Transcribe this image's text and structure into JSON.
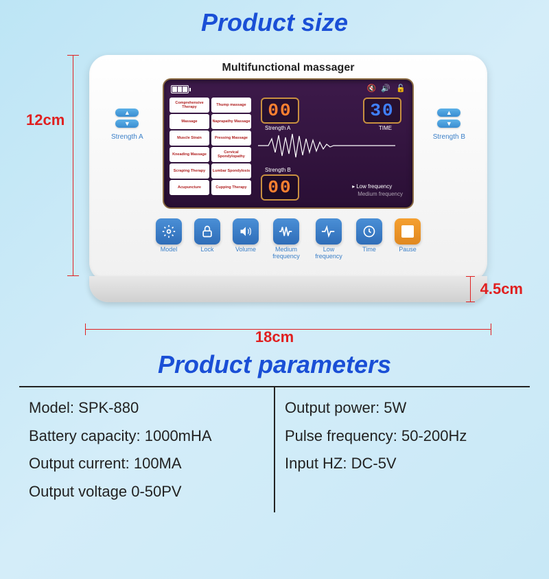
{
  "titles": {
    "size": "Product size",
    "params": "Product parameters"
  },
  "device_label": "Multifunctional massager",
  "dimensions": {
    "height": "12cm",
    "width": "18cm",
    "depth": "4.5cm"
  },
  "modes": {
    "col1": [
      "Comprehensive Therapy",
      "Massage",
      "Muscle Strain",
      "Kneading Massage",
      "Scraping Therapy",
      "Acupuncture"
    ],
    "col2": [
      "Thump massage",
      "Naprapathy Massage",
      "Pressing Massage",
      "Cervical Spondylopathy",
      "Lumbar Spondylosis",
      "Cupping Therapy"
    ]
  },
  "readouts": {
    "strength_a": "00",
    "time": "30",
    "strength_b": "00",
    "label_a": "Strength A",
    "label_b": "Strength B",
    "label_time": "TIME"
  },
  "freq": {
    "low": "Low frequency",
    "medium": "Medium frequency"
  },
  "side": {
    "left": "Strength A",
    "right": "Strength B"
  },
  "buttons": [
    {
      "name": "model-button",
      "label": "Model",
      "icon": "gear"
    },
    {
      "name": "lock-button",
      "label": "Lock",
      "icon": "lock"
    },
    {
      "name": "volume-button",
      "label": "Volume",
      "icon": "volume"
    },
    {
      "name": "medium-freq-button",
      "label": "Medium frequency",
      "icon": "pulse-m"
    },
    {
      "name": "low-freq-button",
      "label": "Low frequency",
      "icon": "pulse-l"
    },
    {
      "name": "time-button",
      "label": "Time",
      "icon": "clock"
    },
    {
      "name": "pause-button",
      "label": "Pause",
      "icon": "pause"
    }
  ],
  "parameters": {
    "left": [
      {
        "label": "Model:",
        "value": "SPK-880"
      },
      {
        "label": "Battery capacity:",
        "value": "1000mHA"
      },
      {
        "label": "Output current:",
        "value": "100MA"
      },
      {
        "label": "Output voltage",
        "value": "0-50PV"
      }
    ],
    "right": [
      {
        "label": "Output power:",
        "value": "5W"
      },
      {
        "label": "Pulse frequency:",
        "value": "50-200Hz"
      },
      {
        "label": "Input HZ:",
        "value": "DC-5V"
      }
    ]
  },
  "colors": {
    "accent_blue": "#1a4fd6",
    "dim_red": "#e02020",
    "btn_blue": "#3a8cd0",
    "btn_orange": "#e08820",
    "screen_bg": "#2a0f35",
    "digit_orange": "#ff8030",
    "digit_blue": "#4080ff",
    "digit_border": "#c89040"
  }
}
